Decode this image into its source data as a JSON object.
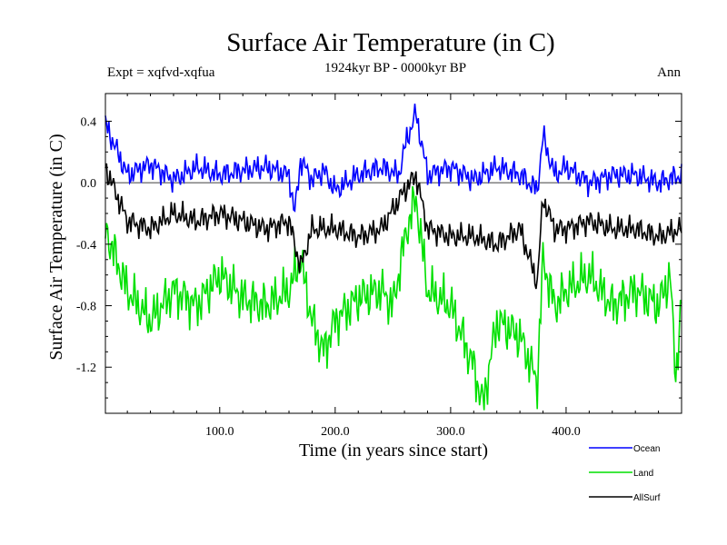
{
  "chart_data": {
    "type": "line",
    "title": "Surface Air Temperature (in C)",
    "subtitle_left": "Expt = xqfvd-xqfua",
    "subtitle_center": "1924kyr BP - 0000kyr BP",
    "subtitle_right": "Ann",
    "xlabel": "Time (in years since start)",
    "ylabel": "Surface Air Temperature (in C)",
    "xlim": [
      1,
      500
    ],
    "ylim": [
      -1.5,
      0.58
    ],
    "xticks": [
      100,
      200,
      300,
      400
    ],
    "xtick_labels": [
      "100.0",
      "200.0",
      "300.0",
      "400.0"
    ],
    "yticks": [
      0.4,
      0.0,
      -0.4,
      -0.8,
      -1.2
    ],
    "ytick_labels": [
      "0.4",
      "0.0",
      "-0.4",
      "-0.8",
      "-1.2"
    ],
    "zero_line": 0.0,
    "legend_position": "bottom-right",
    "series": [
      {
        "name": "Ocean",
        "color": "#0000ff",
        "x": [
          1,
          20,
          40,
          60,
          80,
          100,
          120,
          140,
          160,
          165,
          170,
          180,
          190,
          200,
          220,
          240,
          255,
          262,
          270,
          280,
          300,
          320,
          340,
          360,
          375,
          380,
          390,
          400,
          420,
          440,
          460,
          480,
          500
        ],
        "values": [
          0.38,
          0.05,
          0.12,
          0.02,
          0.1,
          0.05,
          0.08,
          0.1,
          0.05,
          -0.2,
          0.15,
          0.02,
          0.08,
          -0.05,
          0.05,
          0.1,
          0.05,
          0.28,
          0.45,
          0.05,
          0.1,
          0.02,
          0.1,
          0.05,
          -0.05,
          0.3,
          0.05,
          0.1,
          0.0,
          0.05,
          0.05,
          0.0,
          0.05
        ]
      },
      {
        "name": "Land",
        "color": "#00e000",
        "x": [
          1,
          20,
          40,
          60,
          80,
          100,
          120,
          140,
          160,
          170,
          180,
          190,
          200,
          220,
          240,
          250,
          262,
          270,
          280,
          300,
          310,
          320,
          328,
          340,
          360,
          375,
          380,
          390,
          400,
          420,
          440,
          460,
          480,
          490,
          495,
          500
        ],
        "values": [
          -0.3,
          -0.7,
          -0.9,
          -0.7,
          -0.8,
          -0.6,
          -0.75,
          -0.8,
          -0.7,
          -0.5,
          -0.9,
          -1.1,
          -0.9,
          -0.75,
          -0.7,
          -0.8,
          -0.3,
          -0.1,
          -0.7,
          -0.8,
          -1.0,
          -1.2,
          -1.45,
          -0.9,
          -1.0,
          -1.3,
          -0.5,
          -0.8,
          -0.7,
          -0.6,
          -0.8,
          -0.7,
          -0.8,
          -0.6,
          -1.25,
          -0.8
        ]
      },
      {
        "name": "AllSurf",
        "color": "#000000",
        "x": [
          1,
          20,
          40,
          60,
          80,
          100,
          120,
          140,
          160,
          170,
          180,
          200,
          220,
          240,
          260,
          270,
          280,
          300,
          320,
          340,
          360,
          375,
          380,
          390,
          400,
          420,
          440,
          460,
          480,
          500
        ],
        "values": [
          0.1,
          -0.25,
          -0.3,
          -0.2,
          -0.25,
          -0.2,
          -0.25,
          -0.3,
          -0.25,
          -0.55,
          -0.3,
          -0.3,
          -0.35,
          -0.3,
          -0.05,
          0.05,
          -0.3,
          -0.35,
          -0.35,
          -0.4,
          -0.3,
          -0.65,
          -0.1,
          -0.3,
          -0.3,
          -0.25,
          -0.3,
          -0.3,
          -0.35,
          -0.3
        ]
      }
    ]
  }
}
